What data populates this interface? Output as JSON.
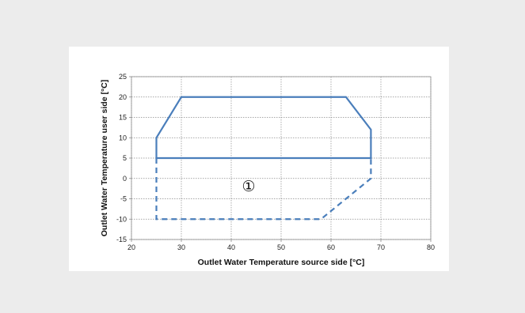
{
  "chart_data": {
    "type": "line",
    "xlabel": "Outlet Water Temperature source side [°C]",
    "ylabel": "Outlet Water Temperature user side [°C]",
    "xlim": [
      20,
      80
    ],
    "ylim": [
      -15,
      25
    ],
    "xticks": [
      20,
      30,
      40,
      50,
      60,
      70,
      80
    ],
    "yticks": [
      -15,
      -10,
      -5,
      0,
      5,
      10,
      15,
      20,
      25
    ],
    "grid": true,
    "legend": "none",
    "series": [
      {
        "style": "solid",
        "color": "#4a7ebb",
        "points": [
          [
            25,
            5
          ],
          [
            25,
            10
          ],
          [
            30,
            20
          ],
          [
            63,
            20
          ],
          [
            68,
            12
          ],
          [
            68,
            5
          ],
          [
            25,
            5
          ]
        ]
      },
      {
        "style": "dashed",
        "color": "#4a7ebb",
        "points": [
          [
            25,
            5
          ],
          [
            25,
            -10
          ],
          [
            58,
            -10
          ],
          [
            68,
            0
          ],
          [
            68,
            5
          ]
        ]
      }
    ],
    "annotations": [
      {
        "text": "①",
        "x": 43.5,
        "y": -2
      }
    ]
  }
}
